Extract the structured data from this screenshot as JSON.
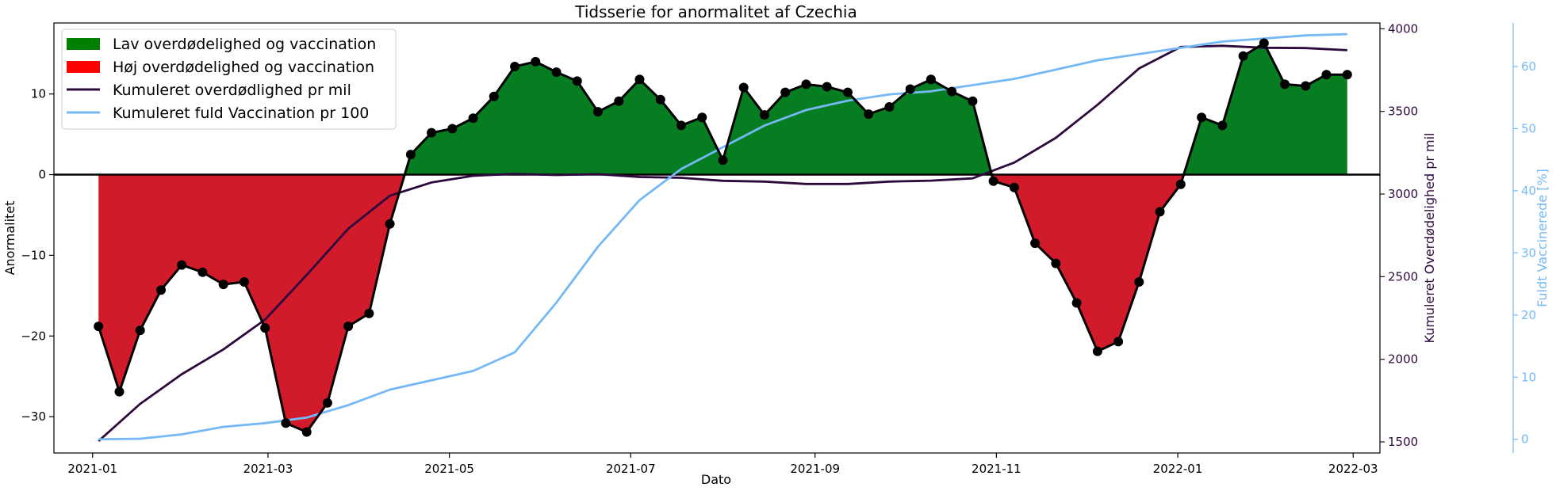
{
  "chart_data": {
    "type": "line",
    "title": "Tidsserie for anormalitet af Czechia",
    "xlabel": "Dato",
    "ylabel_left": "Anormalitet",
    "ylabel_right1": "Kumuleret Overdødelighed pr mil",
    "ylabel_right2": "Fuldt Vaccinerede [%]",
    "x_ticks": [
      "2021-01",
      "2021-03",
      "2021-05",
      "2021-07",
      "2021-09",
      "2021-11",
      "2022-01",
      "2022-03"
    ],
    "y_left_ticks": [
      -30,
      -20,
      -10,
      0,
      10
    ],
    "y_left_lim": [
      -34.5,
      18.8
    ],
    "y_right1_ticks": [
      1500,
      2000,
      2500,
      3000,
      3500,
      4000
    ],
    "y_right1_lim": [
      1433,
      4035
    ],
    "y_right2_ticks": [
      0,
      10,
      20,
      30,
      40,
      50,
      60
    ],
    "y_right2_lim": [
      -2.2,
      67
    ],
    "x_lim": [
      "2020-12-19",
      "2022-03-10"
    ],
    "legend_position": "top-left",
    "legend": [
      {
        "label": "Lav overdødelighed og vaccination",
        "color": "#008000",
        "kind": "patch"
      },
      {
        "label": "Høj overdødelighed og vaccination",
        "color": "#ff0000",
        "kind": "patch"
      },
      {
        "label": "Kumuleret overdødlighed pr mil",
        "color": "#2d0a3d",
        "kind": "line"
      },
      {
        "label": "Kumuleret fuld Vaccination pr 100",
        "color": "#74b9f5",
        "kind": "line"
      }
    ],
    "colors": {
      "positive_fill": "#077d22",
      "negative_fill": "#d11a2a",
      "anomaly_line": "#000000",
      "excess_line": "#2d0a3d",
      "vaccination_line": "#74b9f5",
      "right1_axis": "#2d0a3d",
      "right2_axis": "#74b9f5"
    },
    "series": [
      {
        "name": "Anormalitet",
        "dates": [
          "2021-01-03",
          "2021-01-10",
          "2021-01-17",
          "2021-01-24",
          "2021-01-31",
          "2021-02-07",
          "2021-02-14",
          "2021-02-21",
          "2021-02-28",
          "2021-03-07",
          "2021-03-14",
          "2021-03-21",
          "2021-03-28",
          "2021-04-04",
          "2021-04-11",
          "2021-04-18",
          "2021-04-25",
          "2021-05-02",
          "2021-05-09",
          "2021-05-16",
          "2021-05-23",
          "2021-05-30",
          "2021-06-06",
          "2021-06-13",
          "2021-06-20",
          "2021-06-27",
          "2021-07-04",
          "2021-07-11",
          "2021-07-18",
          "2021-07-25",
          "2021-08-01",
          "2021-08-08",
          "2021-08-15",
          "2021-08-22",
          "2021-08-29",
          "2021-09-05",
          "2021-09-12",
          "2021-09-19",
          "2021-09-26",
          "2021-10-03",
          "2021-10-10",
          "2021-10-17",
          "2021-10-24",
          "2021-10-31",
          "2021-11-07",
          "2021-11-14",
          "2021-11-21",
          "2021-11-28",
          "2021-12-05",
          "2021-12-12",
          "2021-12-19",
          "2021-12-26",
          "2022-01-02",
          "2022-01-09",
          "2022-01-16",
          "2022-01-23",
          "2022-01-30",
          "2022-02-06",
          "2022-02-13",
          "2022-02-20",
          "2022-02-27"
        ],
        "values": [
          -18.8,
          -26.9,
          -19.3,
          -14.3,
          -11.2,
          -12.1,
          -13.6,
          -13.3,
          -19.0,
          -30.8,
          -31.9,
          -28.3,
          -18.8,
          -17.2,
          -6.1,
          2.5,
          5.2,
          5.7,
          7.0,
          9.7,
          13.4,
          14.0,
          12.7,
          11.6,
          7.8,
          9.1,
          11.8,
          9.3,
          6.1,
          7.1,
          1.8,
          10.8,
          7.4,
          10.2,
          11.2,
          10.9,
          10.2,
          7.5,
          8.4,
          10.6,
          11.8,
          10.3,
          9.1,
          -0.8,
          -1.6,
          -8.5,
          -11.0,
          -15.9,
          -21.9,
          -20.7,
          -13.3,
          -4.6,
          -1.2,
          7.1,
          6.1,
          14.7,
          16.3,
          11.2,
          11.0,
          12.4,
          12.4
        ]
      },
      {
        "name": "Kumuleret overdødlighed pr mil",
        "axis": "right1",
        "dates": [
          "2021-01-03",
          "2021-01-17",
          "2021-01-31",
          "2021-02-14",
          "2021-02-28",
          "2021-03-14",
          "2021-03-28",
          "2021-04-11",
          "2021-04-25",
          "2021-05-09",
          "2021-05-23",
          "2021-06-06",
          "2021-06-20",
          "2021-07-04",
          "2021-07-18",
          "2021-08-01",
          "2021-08-15",
          "2021-08-29",
          "2021-09-12",
          "2021-09-26",
          "2021-10-10",
          "2021-10-24",
          "2021-11-07",
          "2021-11-21",
          "2021-12-05",
          "2021-12-19",
          "2022-01-02",
          "2022-01-16",
          "2022-01-30",
          "2022-02-13",
          "2022-02-27"
        ],
        "values": [
          1505,
          1730,
          1910,
          2060,
          2240,
          2510,
          2790,
          2990,
          3070,
          3110,
          3122,
          3115,
          3120,
          3103,
          3098,
          3080,
          3075,
          3061,
          3061,
          3075,
          3081,
          3095,
          3190,
          3340,
          3540,
          3760,
          3890,
          3897,
          3885,
          3883,
          3870
        ]
      },
      {
        "name": "Kumuleret fuld Vaccination pr 100",
        "axis": "right2",
        "dates": [
          "2021-01-03",
          "2021-01-17",
          "2021-01-31",
          "2021-02-14",
          "2021-02-28",
          "2021-03-14",
          "2021-03-28",
          "2021-04-11",
          "2021-04-25",
          "2021-05-09",
          "2021-05-23",
          "2021-06-06",
          "2021-06-20",
          "2021-07-04",
          "2021-07-18",
          "2021-08-01",
          "2021-08-15",
          "2021-08-29",
          "2021-09-12",
          "2021-09-26",
          "2021-10-10",
          "2021-10-24",
          "2021-11-07",
          "2021-11-21",
          "2021-12-05",
          "2021-12-19",
          "2022-01-02",
          "2022-01-16",
          "2022-01-30",
          "2022-02-13",
          "2022-02-27"
        ],
        "values": [
          0,
          0.1,
          0.8,
          2.0,
          2.6,
          3.5,
          5.5,
          8.0,
          9.5,
          11.0,
          14.0,
          22.0,
          31.0,
          38.5,
          43.5,
          47.0,
          50.5,
          53.0,
          54.5,
          55.5,
          56.0,
          57.0,
          58.0,
          59.5,
          61.0,
          62.0,
          63.0,
          64.0,
          64.5,
          65.0,
          65.2
        ]
      }
    ]
  }
}
